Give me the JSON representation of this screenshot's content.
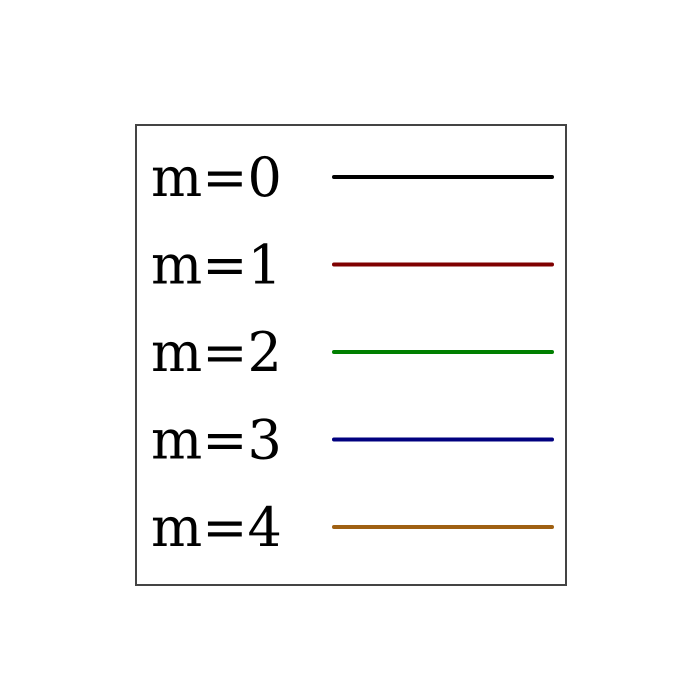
{
  "chart_data": {
    "type": "line",
    "title": "",
    "xlabel": "",
    "ylabel": "",
    "legend_placement": "full-frame",
    "series": [
      {
        "name": "m=0",
        "color": "#000000",
        "values": []
      },
      {
        "name": "m=1",
        "color": "#7f0000",
        "values": []
      },
      {
        "name": "m=2",
        "color": "#007f00",
        "values": []
      },
      {
        "name": "m=3",
        "color": "#00007f",
        "values": []
      },
      {
        "name": "m=4",
        "color": "#9f6012",
        "values": []
      }
    ]
  }
}
